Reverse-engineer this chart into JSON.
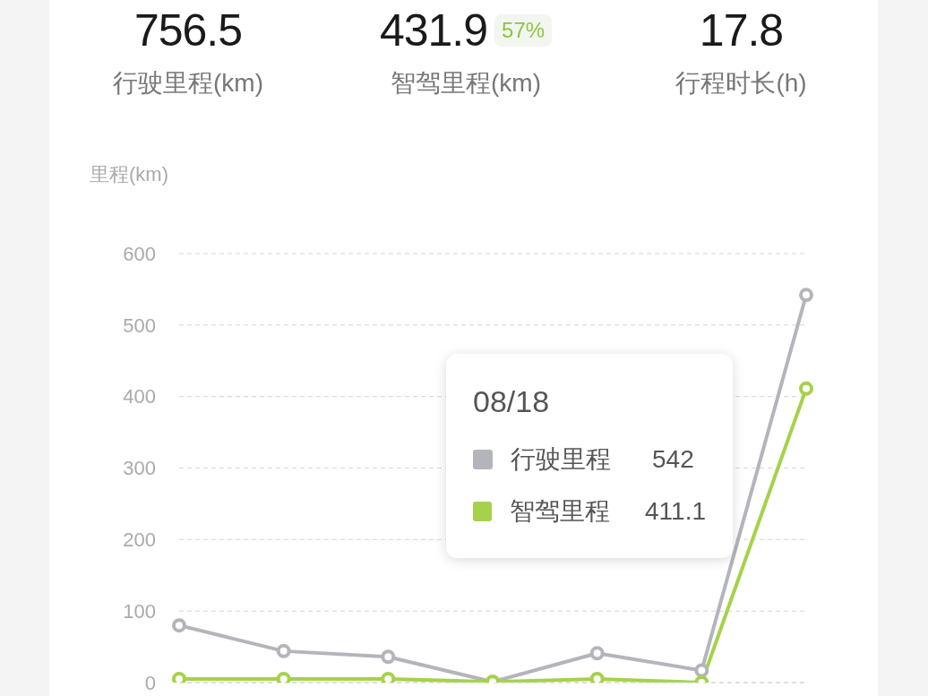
{
  "chart_data": {
    "type": "line",
    "ylabel": "里程(km)",
    "legend_title": "08/18",
    "categories": [
      null,
      null,
      null,
      null,
      null,
      null,
      null
    ],
    "series": [
      {
        "name": "行驶里程",
        "color": "#b4b4bc",
        "values": [
          80,
          44,
          36,
          1,
          41,
          17,
          542
        ]
      },
      {
        "name": "智驾里程",
        "color": "#a5d24a",
        "values": [
          5,
          5,
          5,
          1,
          5,
          0,
          411.1
        ]
      }
    ],
    "ylim": [
      0,
      600
    ],
    "yticks": [
      0,
      100,
      200,
      300,
      400,
      500,
      600
    ],
    "grid": "y",
    "legend": "right",
    "marker": "circle",
    "line_style": "solid",
    "annotations": [
      "756.5",
      "行驶里程(km)",
      "431.9",
      "57%",
      "智驾里程(km)",
      "17.8",
      "行程时长(h)",
      "542",
      "411.1"
    ]
  }
}
